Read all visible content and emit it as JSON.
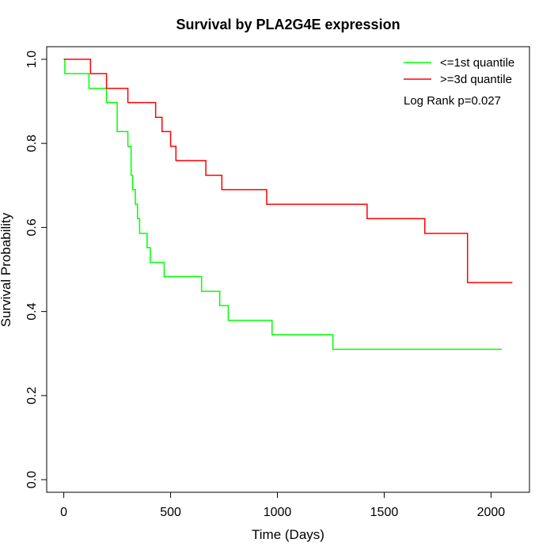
{
  "chart_data": {
    "type": "line",
    "title": "Survival by PLA2G4E expression",
    "xlabel": "Time (Days)",
    "ylabel": "Survival Probability",
    "xlim": [
      -80,
      2180
    ],
    "ylim": [
      -0.03,
      1.03
    ],
    "xticks": [
      0,
      500,
      1000,
      1500,
      2000
    ],
    "xtick_labels": [
      "0",
      "500",
      "1000",
      "1500",
      "2000"
    ],
    "yticks": [
      0.0,
      0.2,
      0.4,
      0.6,
      0.8,
      1.0
    ],
    "ytick_labels": [
      "0.0",
      "0.2",
      "0.4",
      "0.6",
      "0.8",
      "1.0"
    ],
    "grid": false,
    "legend_position": "top-right",
    "annotation": "Log Rank p=0.027",
    "series": [
      {
        "name": "<=1st quantile",
        "color": "#00ff00",
        "step": true,
        "x": [
          0,
          5,
          118,
          200,
          250,
          300,
          315,
          322,
          335,
          345,
          355,
          362,
          370,
          390,
          405,
          470,
          645,
          730,
          770,
          975,
          1260,
          2050
        ],
        "y": [
          1.0,
          0.966,
          0.931,
          0.897,
          0.828,
          0.793,
          0.724,
          0.69,
          0.655,
          0.621,
          0.586,
          0.586,
          0.586,
          0.552,
          0.517,
          0.483,
          0.448,
          0.414,
          0.379,
          0.345,
          0.31,
          0.31
        ]
      },
      {
        "name": ">=3d quantile",
        "color": "#ff0000",
        "step": true,
        "x": [
          0,
          125,
          200,
          300,
          430,
          460,
          500,
          525,
          665,
          740,
          950,
          1420,
          1690,
          1890,
          2100
        ],
        "y": [
          1.0,
          0.966,
          0.931,
          0.897,
          0.862,
          0.828,
          0.793,
          0.759,
          0.724,
          0.69,
          0.655,
          0.621,
          0.586,
          0.469,
          0.469
        ]
      }
    ]
  }
}
